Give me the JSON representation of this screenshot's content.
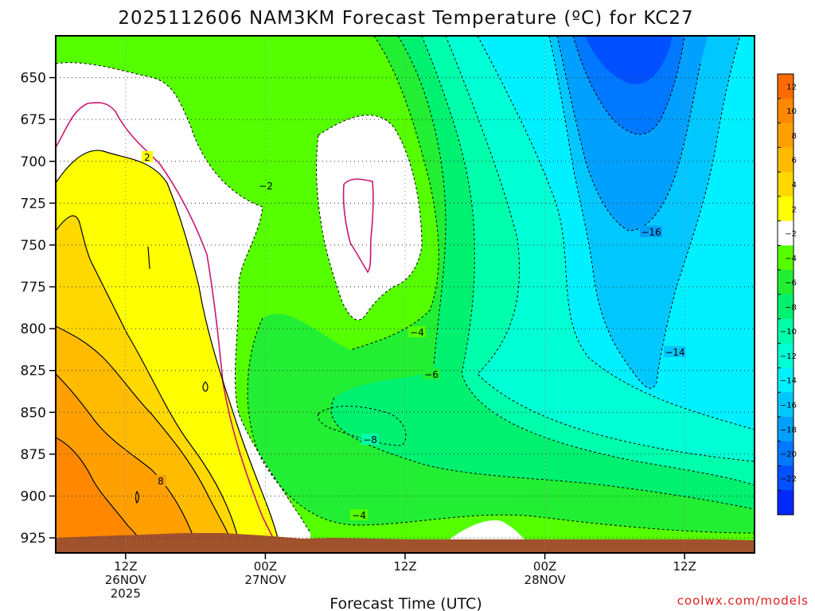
{
  "chart_data": {
    "type": "heatmap",
    "title": "2025112606 NAM3KM Forecast Temperature (ºC) for KC27",
    "xlabel": "Forecast Time (UTC)",
    "ylabel": "",
    "credit": "coolwx.com/models",
    "y_axis": {
      "unit": "hPa",
      "ticks": [
        650,
        675,
        700,
        725,
        750,
        775,
        800,
        825,
        850,
        875,
        900,
        925
      ],
      "range": [
        625,
        934
      ],
      "reversed": true
    },
    "x_axis": {
      "ticks": [
        {
          "hour": 12,
          "line1": "12Z",
          "line2": "26NOV",
          "line3": "2025"
        },
        {
          "hour": 24,
          "line1": "00Z",
          "line2": "27NOV",
          "line3": ""
        },
        {
          "hour": 36,
          "line1": "12Z",
          "line2": "",
          "line3": ""
        },
        {
          "hour": 48,
          "line1": "00Z",
          "line2": "28NOV",
          "line3": ""
        },
        {
          "hour": 60,
          "line1": "12Z",
          "line2": "",
          "line3": ""
        }
      ],
      "range": [
        6,
        66
      ]
    },
    "colorbar": {
      "labels": [
        "12",
        "10",
        "8",
        "6",
        "4",
        "2",
        "−2",
        "−4",
        "−6",
        "−8",
        "−10",
        "−12",
        "−14",
        "−16",
        "−18",
        "−20",
        "−22"
      ],
      "bins": [
        {
          "min": 12,
          "max": 14,
          "color": "#ff6a00"
        },
        {
          "min": 10,
          "max": 12,
          "color": "#ff8800"
        },
        {
          "min": 8,
          "max": 10,
          "color": "#ffa000"
        },
        {
          "min": 6,
          "max": 8,
          "color": "#ffbb00"
        },
        {
          "min": 4,
          "max": 6,
          "color": "#ffd800"
        },
        {
          "min": 2,
          "max": 4,
          "color": "#ffff00"
        },
        {
          "min": -2,
          "max": 2,
          "color": "#ffffff"
        },
        {
          "min": -4,
          "max": -2,
          "color": "#55ff00"
        },
        {
          "min": -6,
          "max": -4,
          "color": "#22ee33"
        },
        {
          "min": -8,
          "max": -6,
          "color": "#00f070"
        },
        {
          "min": -10,
          "max": -8,
          "color": "#00ffaa"
        },
        {
          "min": -12,
          "max": -10,
          "color": "#00ffd4"
        },
        {
          "min": -14,
          "max": -12,
          "color": "#00f0ff"
        },
        {
          "min": -16,
          "max": -14,
          "color": "#00c8ff"
        },
        {
          "min": -18,
          "max": -16,
          "color": "#00a0ff"
        },
        {
          "min": -20,
          "max": -18,
          "color": "#0078ff"
        },
        {
          "min": -22,
          "max": -20,
          "color": "#0050ff"
        },
        {
          "min": -24,
          "max": -22,
          "color": "#0028ff"
        }
      ]
    },
    "contour_labels": [
      "2",
      "−2",
      "−4",
      "−6",
      "−8",
      "−4",
      "−16",
      "−14",
      "8"
    ],
    "ground_color": "#a0522d",
    "grid": true
  }
}
